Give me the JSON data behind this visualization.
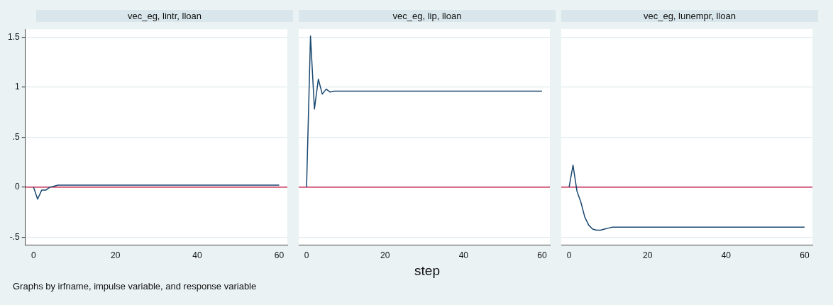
{
  "chart_data": [
    {
      "type": "line",
      "title": "vec_eg, lintr, lloan",
      "xlim": [
        -2,
        62
      ],
      "xticks": [
        0,
        20,
        40,
        60
      ],
      "ylim": [
        -0.58,
        1.58
      ],
      "yticks": [
        {
          "value": -0.5,
          "label": "-.5"
        },
        0,
        {
          "value": 0.5,
          "label": ".5"
        },
        1,
        1.5
      ],
      "grid": "y",
      "legend": false,
      "marker": "none",
      "series": [
        {
          "color": "#1a476f",
          "x": [
            0,
            1,
            2,
            3,
            4,
            5,
            6,
            7,
            60
          ],
          "values": [
            0,
            -0.12,
            -0.03,
            -0.03,
            0,
            0.01,
            0.02,
            0.02,
            0.02
          ]
        }
      ],
      "ref_lines": [
        {
          "axis": "y",
          "value": 0,
          "color": "#c10534"
        }
      ],
      "annotations": [
        "Graphs by irfname, impulse variable, and response variable"
      ]
    },
    {
      "type": "line",
      "title": "vec_eg, lip, lloan",
      "xlim": [
        -2,
        62
      ],
      "xticks": [
        0,
        20,
        40,
        60
      ],
      "ylim": [
        -0.58,
        1.58
      ],
      "yticks": [
        -0.5,
        0,
        0.5,
        1,
        1.5
      ],
      "grid": "y",
      "legend": false,
      "marker": "none",
      "tick_labels": "x",
      "xlabel": "step",
      "series": [
        {
          "color": "#1a476f",
          "x": [
            0,
            1,
            2,
            3,
            4,
            5,
            6,
            7,
            8,
            9,
            60
          ],
          "values": [
            0,
            1.51,
            0.78,
            1.08,
            0.93,
            0.98,
            0.95,
            0.96,
            0.96,
            0.96,
            0.96
          ]
        }
      ],
      "ref_lines": [
        {
          "axis": "y",
          "value": 0,
          "color": "#c10534"
        }
      ]
    },
    {
      "type": "line",
      "title": "vec_eg, lunempr, lloan",
      "xlim": [
        -2,
        62
      ],
      "xticks": [
        0,
        20,
        40,
        60
      ],
      "ylim": [
        -0.58,
        1.58
      ],
      "yticks": [
        -0.5,
        0,
        0.5,
        1,
        1.5
      ],
      "grid": "y",
      "legend": false,
      "marker": "none",
      "tick_labels": "x",
      "series": [
        {
          "color": "#1a476f",
          "x": [
            0,
            1,
            2,
            3,
            4,
            5,
            6,
            7,
            8,
            9,
            10,
            11,
            60
          ],
          "values": [
            0,
            0.22,
            -0.04,
            -0.15,
            -0.3,
            -0.38,
            -0.42,
            -0.43,
            -0.43,
            -0.42,
            -0.41,
            -0.4,
            -0.4
          ]
        }
      ],
      "ref_lines": [
        {
          "axis": "y",
          "value": 0,
          "color": "#c10534"
        }
      ]
    }
  ]
}
